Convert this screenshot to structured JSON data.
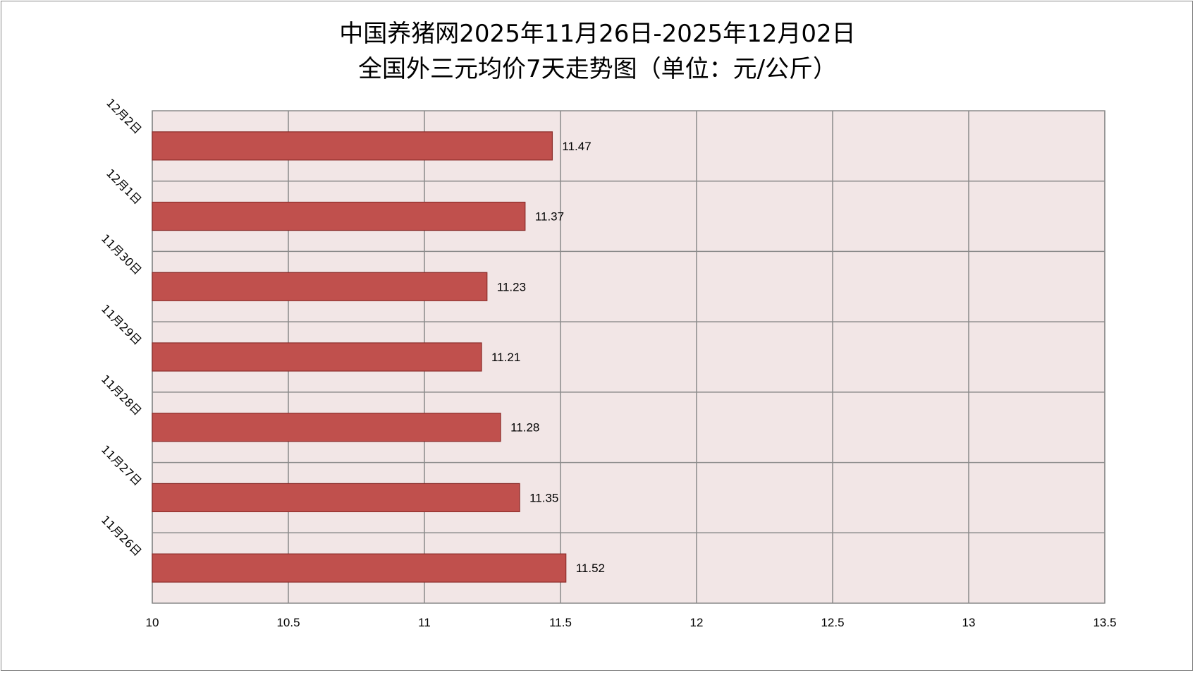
{
  "chart_data": {
    "type": "bar",
    "orientation": "horizontal",
    "title_line1": "中国养猪网2025年11月26日-2025年12月02日",
    "title_line2": "全国外三元均价7天走势图（单位：元/公斤）",
    "categories": [
      "12月2日",
      "12月1日",
      "11月30日",
      "11月29日",
      "11月28日",
      "11月27日",
      "11月26日"
    ],
    "values": [
      11.47,
      11.37,
      11.23,
      11.21,
      11.28,
      11.35,
      11.52
    ],
    "data_labels": [
      "11.47",
      "11.37",
      "11.23",
      "11.21",
      "11.28",
      "11.35",
      "11.52"
    ],
    "xlim": [
      10,
      13.5
    ],
    "x_ticks": [
      10,
      10.5,
      11,
      11.5,
      12,
      12.5,
      13,
      13.5
    ],
    "x_tick_labels": [
      "10",
      "10.5",
      "11",
      "11.5",
      "12",
      "12.5",
      "13",
      "13.5"
    ],
    "grid": true,
    "legend": "none",
    "colors": {
      "bar": "#c0504d",
      "bar_border": "#8c2d2b",
      "plot_bg": "#f2e6e6",
      "grid": "#8a8a8a"
    }
  }
}
